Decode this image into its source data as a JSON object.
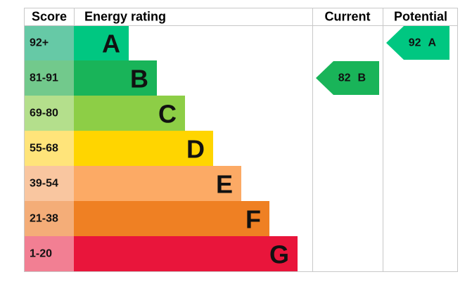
{
  "header": {
    "score": "Score",
    "energy_rating": "Energy rating",
    "current": "Current",
    "potential": "Potential"
  },
  "bands": [
    {
      "score": "92+",
      "letter": "A"
    },
    {
      "score": "81-91",
      "letter": "B"
    },
    {
      "score": "69-80",
      "letter": "C"
    },
    {
      "score": "55-68",
      "letter": "D"
    },
    {
      "score": "39-54",
      "letter": "E"
    },
    {
      "score": "21-38",
      "letter": "F"
    },
    {
      "score": "1-20",
      "letter": "G"
    }
  ],
  "current": {
    "value": 82,
    "letter": "B"
  },
  "potential": {
    "value": 92,
    "letter": "A"
  }
}
